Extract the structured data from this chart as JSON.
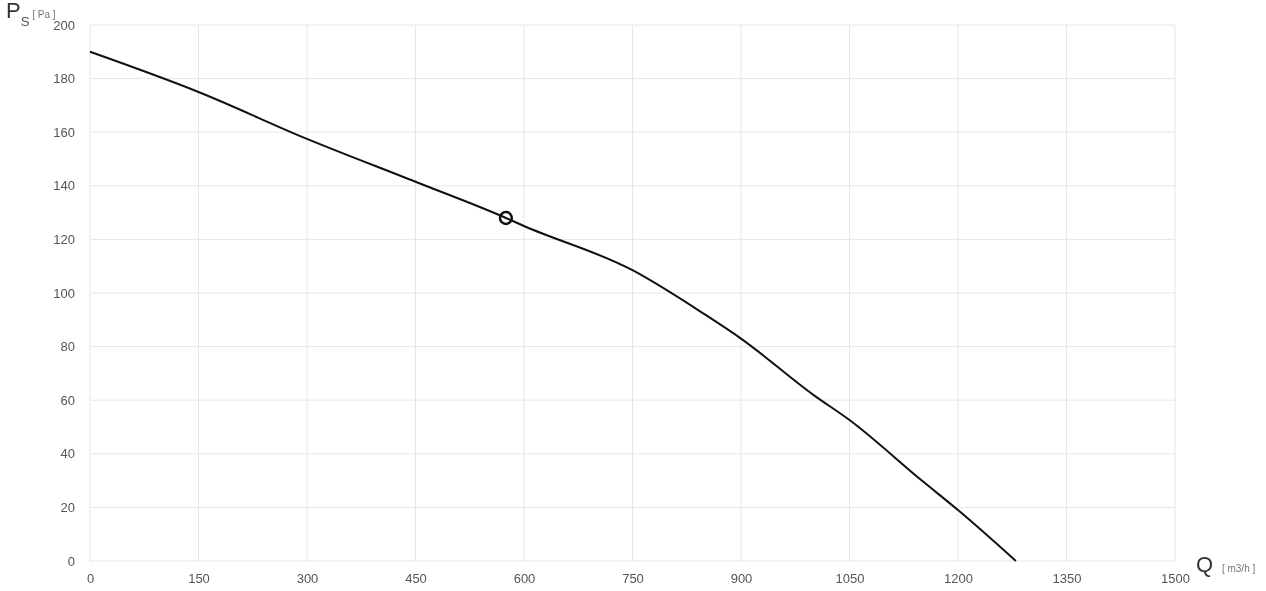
{
  "chart_data": {
    "type": "line",
    "xlabel": "Q [ m3/h ]",
    "ylabel": "P$_{S}$ [ Pa ]",
    "xlim": [
      0,
      1500
    ],
    "xticks": [
      0,
      150,
      300,
      450,
      600,
      750,
      900,
      1050,
      1200,
      1350,
      1500
    ],
    "ylim": [
      0,
      200
    ],
    "yticks": [
      0,
      20,
      40,
      60,
      80,
      100,
      120,
      140,
      160,
      180,
      200
    ],
    "grid": true,
    "series": [
      {
        "color": "#111111",
        "line_style": "solid",
        "marker": "none",
        "x": [
          0,
          150,
          300,
          450,
          575,
          600,
          750,
          850,
          900,
          1000,
          1050,
          1150,
          1200,
          1280
        ],
        "values": [
          190,
          175,
          157.5,
          141.5,
          128,
          125,
          108.5,
          92,
          83,
          62,
          52.6,
          30,
          19,
          0
        ]
      },
      {
        "type": "scatter",
        "color": "#111111",
        "marker": "circle",
        "x": [
          575
        ],
        "values": [
          128
        ]
      }
    ]
  }
}
